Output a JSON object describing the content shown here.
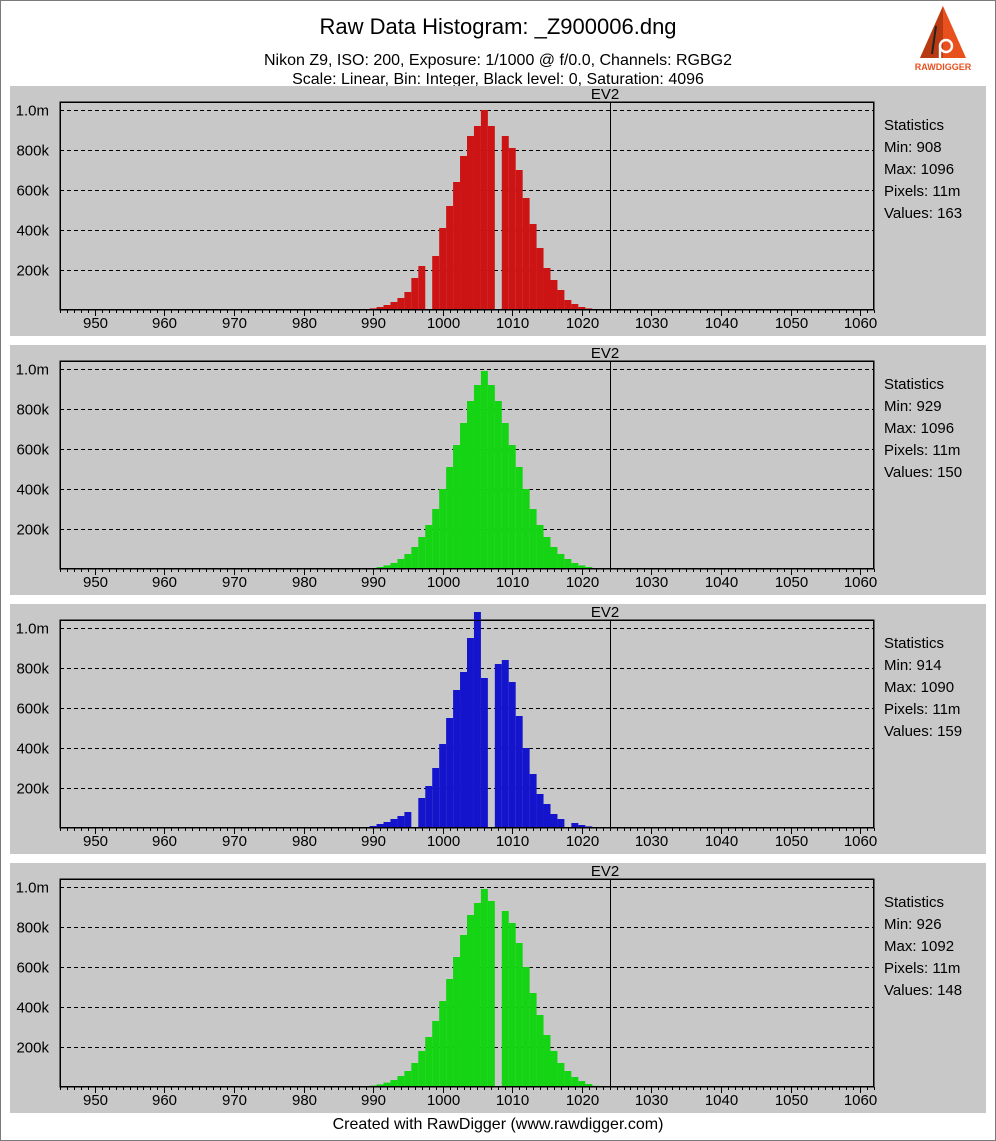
{
  "header": {
    "title": "Raw Data Histogram: _Z900006.dng",
    "subtitle": "Nikon Z9, ISO: 200, Exposure: 1/1000 @ f/0.0, Channels: RGBG2",
    "clipped_line": "Scale: Linear, Bin: Integer, Black level: 0, Saturation: 4096"
  },
  "logo": {
    "text": "RAWDIGGER",
    "color": "#e8501e"
  },
  "footer": {
    "text": "Created with RawDigger (www.rawdigger.com)"
  },
  "chart_data": [
    {
      "type": "bar",
      "title": "EV2",
      "color": "#cc1414",
      "xlim": [
        945,
        1062
      ],
      "xticks": [
        950,
        960,
        970,
        980,
        990,
        1000,
        1010,
        1020,
        1030,
        1040,
        1050,
        1060
      ],
      "ylim": [
        0,
        1040000
      ],
      "yticks": [
        200000,
        400000,
        600000,
        800000,
        1000000
      ],
      "ytick_labels": [
        "200k",
        "400k",
        "600k",
        "800k",
        "1.0m"
      ],
      "vline": 1024,
      "x": [
        989,
        990,
        991,
        992,
        993,
        994,
        995,
        996,
        997,
        998,
        999,
        1000,
        1001,
        1002,
        1003,
        1004,
        1005,
        1006,
        1007,
        1008,
        1009,
        1010,
        1011,
        1012,
        1013,
        1014,
        1015,
        1016,
        1017,
        1018,
        1019,
        1020,
        1021,
        1022
      ],
      "values": [
        3000,
        8000,
        15000,
        25000,
        40000,
        60000,
        90000,
        160000,
        220000,
        0,
        270000,
        410000,
        520000,
        640000,
        770000,
        870000,
        920000,
        1000000,
        920000,
        0,
        870000,
        810000,
        700000,
        560000,
        430000,
        310000,
        210000,
        150000,
        100000,
        50000,
        30000,
        15000,
        8000,
        3000
      ],
      "stats": {
        "heading": "Statistics",
        "min": "Min: 908",
        "max": "Max: 1096",
        "pixels": "Pixels: 11m",
        "values": "Values: 163"
      }
    },
    {
      "type": "bar",
      "title": "EV2",
      "color": "#14d414",
      "xlim": [
        945,
        1062
      ],
      "xticks": [
        950,
        960,
        970,
        980,
        990,
        1000,
        1010,
        1020,
        1030,
        1040,
        1050,
        1060
      ],
      "ylim": [
        0,
        1040000
      ],
      "yticks": [
        200000,
        400000,
        600000,
        800000,
        1000000
      ],
      "ytick_labels": [
        "200k",
        "400k",
        "600k",
        "800k",
        "1.0m"
      ],
      "vline": 1024,
      "x": [
        989,
        990,
        991,
        992,
        993,
        994,
        995,
        996,
        997,
        998,
        999,
        1000,
        1001,
        1002,
        1003,
        1004,
        1005,
        1006,
        1007,
        1008,
        1009,
        1010,
        1011,
        1012,
        1013,
        1014,
        1015,
        1016,
        1017,
        1018,
        1019,
        1020,
        1021,
        1022
      ],
      "values": [
        2000,
        5000,
        10000,
        18000,
        30000,
        50000,
        75000,
        110000,
        160000,
        220000,
        300000,
        400000,
        510000,
        620000,
        730000,
        840000,
        920000,
        990000,
        920000,
        840000,
        730000,
        620000,
        510000,
        400000,
        300000,
        220000,
        160000,
        110000,
        75000,
        50000,
        30000,
        18000,
        10000,
        4000
      ],
      "stats": {
        "heading": "Statistics",
        "min": "Min: 929",
        "max": "Max: 1096",
        "pixels": "Pixels: 11m",
        "values": "Values: 150"
      }
    },
    {
      "type": "bar",
      "title": "EV2",
      "color": "#1414cc",
      "xlim": [
        945,
        1062
      ],
      "xticks": [
        950,
        960,
        970,
        980,
        990,
        1000,
        1010,
        1020,
        1030,
        1040,
        1050,
        1060
      ],
      "ylim": [
        0,
        1040000
      ],
      "yticks": [
        200000,
        400000,
        600000,
        800000,
        1000000
      ],
      "ytick_labels": [
        "200k",
        "400k",
        "600k",
        "800k",
        "1.0m"
      ],
      "vline": 1024,
      "x": [
        989,
        990,
        991,
        992,
        993,
        994,
        995,
        996,
        997,
        998,
        999,
        1000,
        1001,
        1002,
        1003,
        1004,
        1005,
        1006,
        1007,
        1008,
        1009,
        1010,
        1011,
        1012,
        1013,
        1014,
        1015,
        1016,
        1017,
        1018,
        1019,
        1020,
        1021,
        1022
      ],
      "values": [
        4000,
        10000,
        20000,
        30000,
        45000,
        60000,
        80000,
        0,
        150000,
        210000,
        300000,
        420000,
        550000,
        690000,
        780000,
        950000,
        1080000,
        750000,
        0,
        820000,
        840000,
        730000,
        560000,
        400000,
        270000,
        170000,
        120000,
        70000,
        45000,
        0,
        25000,
        15000,
        8000,
        3000
      ],
      "stats": {
        "heading": "Statistics",
        "min": "Min: 914",
        "max": "Max: 1090",
        "pixels": "Pixels: 11m",
        "values": "Values: 159"
      }
    },
    {
      "type": "bar",
      "title": "EV2",
      "color": "#14d414",
      "xlim": [
        945,
        1062
      ],
      "xticks": [
        950,
        960,
        970,
        980,
        990,
        1000,
        1010,
        1020,
        1030,
        1040,
        1050,
        1060
      ],
      "ylim": [
        0,
        1040000
      ],
      "yticks": [
        200000,
        400000,
        600000,
        800000,
        1000000
      ],
      "ytick_labels": [
        "200k",
        "400k",
        "600k",
        "800k",
        "1.0m"
      ],
      "vline": 1024,
      "x": [
        989,
        990,
        991,
        992,
        993,
        994,
        995,
        996,
        997,
        998,
        999,
        1000,
        1001,
        1002,
        1003,
        1004,
        1005,
        1006,
        1007,
        1008,
        1009,
        1010,
        1011,
        1012,
        1013,
        1014,
        1015,
        1016,
        1017,
        1018,
        1019,
        1020,
        1021,
        1022
      ],
      "values": [
        3000,
        7000,
        13000,
        22000,
        35000,
        55000,
        80000,
        120000,
        180000,
        250000,
        330000,
        430000,
        540000,
        650000,
        760000,
        860000,
        920000,
        990000,
        930000,
        0,
        880000,
        820000,
        720000,
        600000,
        470000,
        360000,
        260000,
        180000,
        120000,
        80000,
        50000,
        30000,
        15000,
        6000
      ],
      "stats": {
        "heading": "Statistics",
        "min": "Min: 926",
        "max": "Max: 1092",
        "pixels": "Pixels: 11m",
        "values": "Values: 148"
      }
    }
  ]
}
